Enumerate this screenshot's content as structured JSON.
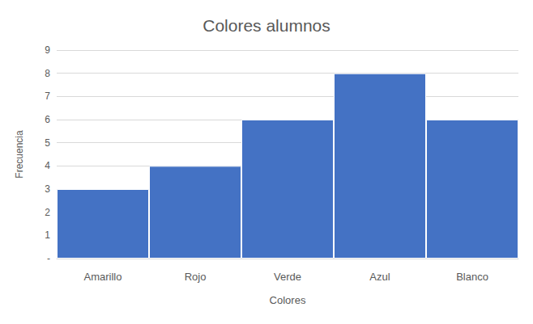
{
  "chart_data": {
    "type": "bar",
    "title": "Colores alumnos",
    "x_label": "Colores",
    "y_label": "Frecuencia",
    "categories": [
      "Amarillo",
      "Rojo",
      "Verde",
      "Azul",
      "Blanco"
    ],
    "values": [
      3,
      4,
      6,
      8,
      6
    ],
    "color": "#4472c4",
    "ylim": [
      0,
      9
    ],
    "yticks": [
      {
        "value": 0,
        "label": "-"
      },
      1,
      2,
      3,
      4,
      5,
      6,
      7,
      8,
      9
    ],
    "grid": true
  }
}
